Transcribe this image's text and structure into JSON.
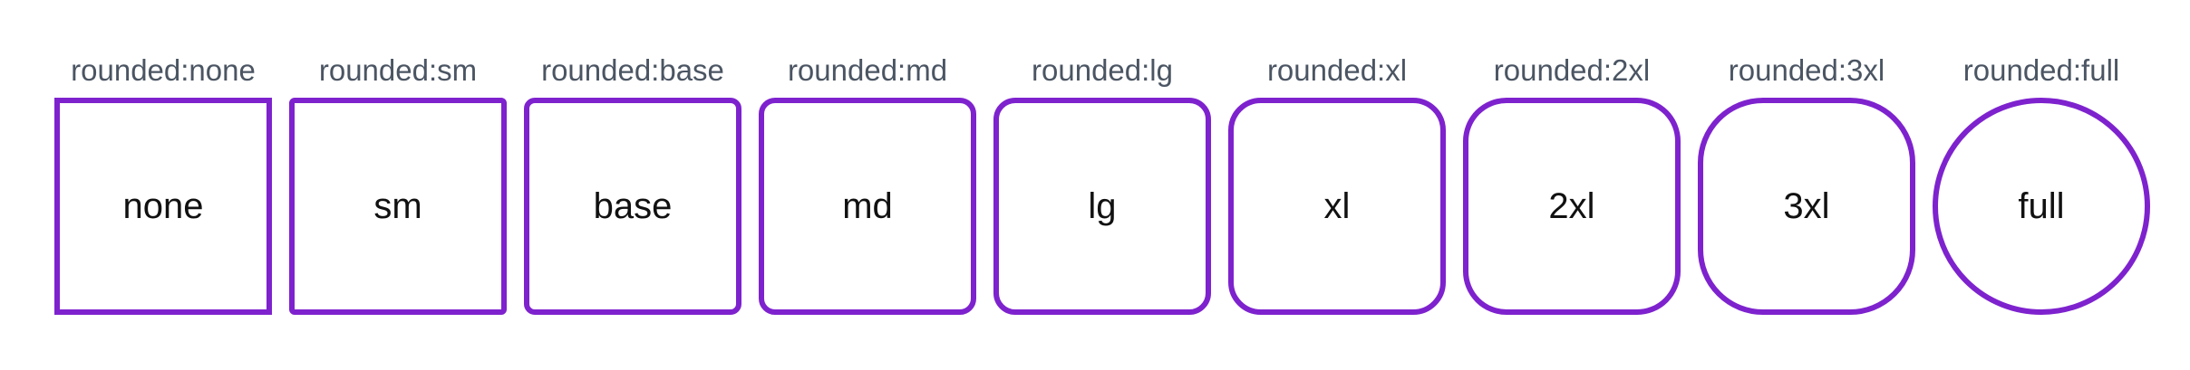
{
  "accent_color": "#7e22ce",
  "caption_color": "#4b5563",
  "items": [
    {
      "caption": "rounded:none",
      "label": "none"
    },
    {
      "caption": "rounded:sm",
      "label": "sm"
    },
    {
      "caption": "rounded:base",
      "label": "base"
    },
    {
      "caption": "rounded:md",
      "label": "md"
    },
    {
      "caption": "rounded:lg",
      "label": "lg"
    },
    {
      "caption": "rounded:xl",
      "label": "xl"
    },
    {
      "caption": "rounded:2xl",
      "label": "2xl"
    },
    {
      "caption": "rounded:3xl",
      "label": "3xl"
    },
    {
      "caption": "rounded:full",
      "label": "full"
    }
  ]
}
